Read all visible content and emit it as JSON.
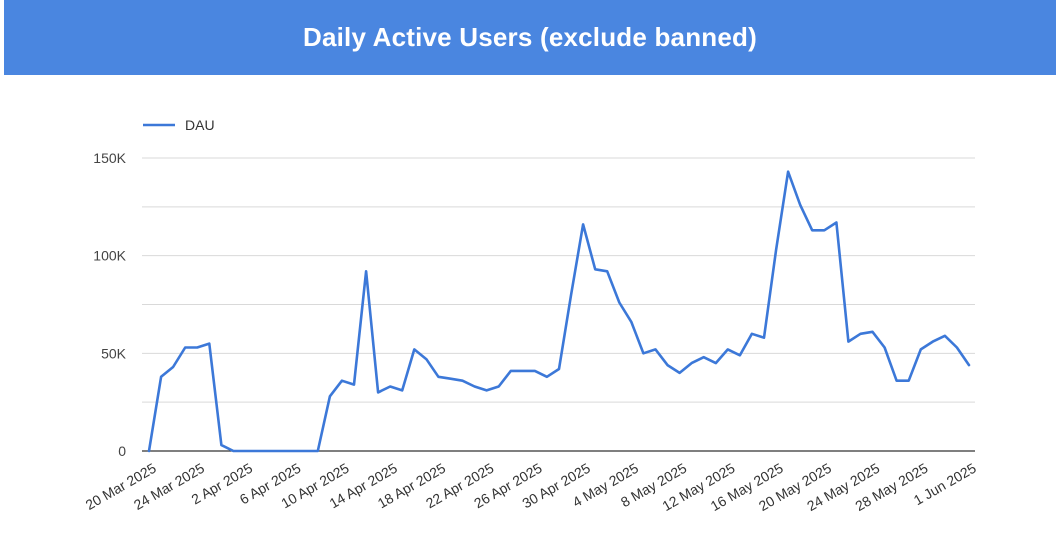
{
  "header": {
    "title": "Daily Active Users (exclude banned)",
    "background": "#4a86e0"
  },
  "chart_data": {
    "type": "line",
    "title": "Daily Active Users (exclude banned)",
    "xlabel": "",
    "ylabel": "",
    "ylim": [
      0,
      150000
    ],
    "yticks": [
      0,
      50000,
      100000,
      150000
    ],
    "ytick_labels": [
      "0",
      "50K",
      "100K",
      "150K"
    ],
    "grid": "horizontal",
    "legend": "top-left",
    "xtick_labels": [
      "20 Mar 2025",
      "24 Mar 2025",
      "2 Apr 2025",
      "6 Apr 2025",
      "10 Apr 2025",
      "14 Apr 2025",
      "18 Apr 2025",
      "22 Apr 2025",
      "26 Apr 2025",
      "30 Apr 2025",
      "4 May 2025",
      "8 May 2025",
      "12 May 2025",
      "16 May 2025",
      "20 May 2025",
      "24 May 2025",
      "28 May 2025",
      "1 Jun 2025"
    ],
    "series": [
      {
        "name": "DAU",
        "color": "#3c78d8",
        "values": [
          0,
          38000,
          43000,
          53000,
          53000,
          55000,
          3000,
          0,
          0,
          0,
          0,
          0,
          0,
          0,
          0,
          28000,
          36000,
          34000,
          92000,
          30000,
          33000,
          31000,
          52000,
          47000,
          38000,
          37000,
          36000,
          33000,
          31000,
          33000,
          41000,
          41000,
          41000,
          38000,
          42000,
          80000,
          116000,
          93000,
          92000,
          76000,
          66000,
          50000,
          52000,
          44000,
          40000,
          45000,
          48000,
          45000,
          52000,
          49000,
          60000,
          58000,
          103000,
          143000,
          126000,
          113000,
          113000,
          117000,
          56000,
          60000,
          61000,
          53000,
          36000,
          36000,
          52000,
          56000,
          59000,
          53000,
          44000
        ]
      }
    ]
  }
}
